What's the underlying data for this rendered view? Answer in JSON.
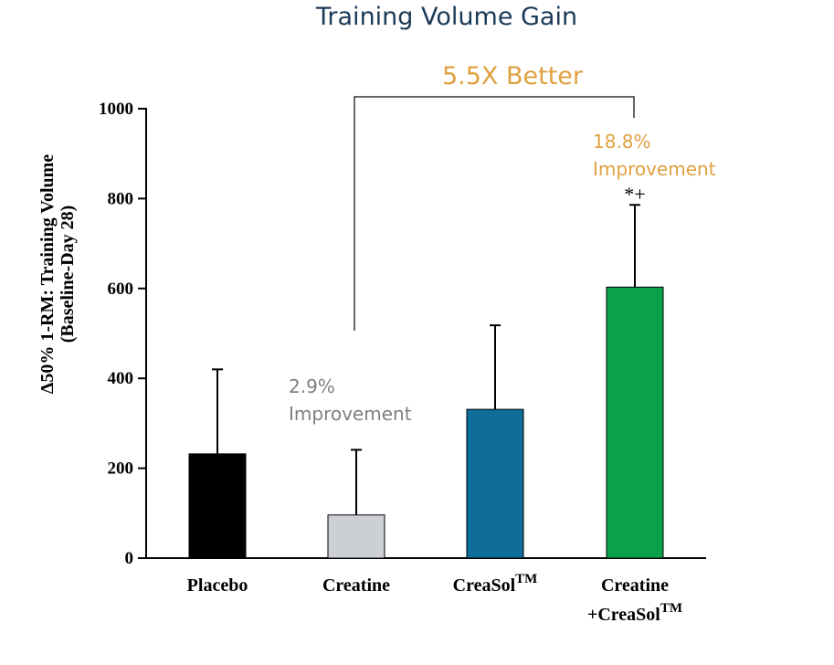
{
  "chart_data": {
    "type": "bar",
    "title": "Training Volume Gain",
    "ylabel_lines": [
      "Δ50% 1-RM: Training Volume",
      "(Baseline-Day 28)"
    ],
    "xlabel": "",
    "ylim": [
      0,
      1000
    ],
    "yticks": [
      0,
      200,
      400,
      600,
      800,
      1000
    ],
    "grid": false,
    "categories": [
      {
        "lines": [
          {
            "text": "Placebo",
            "sup": ""
          }
        ]
      },
      {
        "lines": [
          {
            "text": "Creatine",
            "sup": ""
          }
        ]
      },
      {
        "lines": [
          {
            "text": "CreaSol",
            "sup": "TM"
          }
        ]
      },
      {
        "lines": [
          {
            "text": "Creatine",
            "sup": ""
          },
          {
            "text": "+CreaSol",
            "sup": "TM"
          }
        ]
      }
    ],
    "values": [
      232,
      96,
      331,
      603
    ],
    "error_upper": [
      420,
      241,
      518,
      786
    ],
    "colors": [
      "#000000",
      "#cccfd3",
      "#0e6d99",
      "#0aa14a"
    ],
    "annotations": [
      {
        "index": 1,
        "lines": [
          "2.9%",
          "Improvement"
        ],
        "color": "#7f7f7f"
      },
      {
        "index": 3,
        "lines": [
          "18.8%",
          "Improvement"
        ],
        "color": "#e0a040"
      }
    ],
    "significance": {
      "index": 3,
      "text": "*+"
    },
    "comparison": {
      "from": 1,
      "to": 3,
      "label": "5.5X Better",
      "color": "#e0a040"
    }
  }
}
